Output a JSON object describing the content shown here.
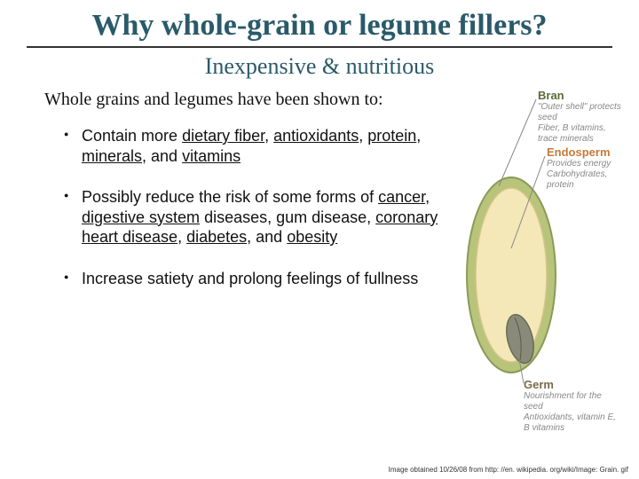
{
  "title": "Why whole-grain or legume fillers?",
  "subtitle": "Inexpensive & nutritious",
  "intro": "Whole grains and legumes have been shown to:",
  "bullets": [
    {
      "segments": [
        {
          "t": "Contain more "
        },
        {
          "t": "dietary fiber",
          "u": true
        },
        {
          "t": ", "
        },
        {
          "t": "antioxidants",
          "u": true
        },
        {
          "t": ", "
        },
        {
          "t": "protein",
          "u": true
        },
        {
          "t": ", "
        },
        {
          "t": "minerals",
          "u": true
        },
        {
          "t": ", and "
        },
        {
          "t": "vitamins",
          "u": true
        }
      ]
    },
    {
      "segments": [
        {
          "t": "Possibly reduce the risk of some forms of "
        },
        {
          "t": "cancer",
          "u": true
        },
        {
          "t": ", "
        },
        {
          "t": "digestive system",
          "u": true
        },
        {
          "t": " diseases, gum disease, "
        },
        {
          "t": "coronary heart disease",
          "u": true
        },
        {
          "t": ", "
        },
        {
          "t": "diabetes",
          "u": true
        },
        {
          "t": ", and "
        },
        {
          "t": "obesity",
          "u": true
        }
      ]
    },
    {
      "segments": [
        {
          "t": "Increase satiety and prolong feelings of fullness"
        }
      ]
    }
  ],
  "diagram": {
    "bran": {
      "title": "Bran",
      "sub1": "\"Outer shell\" protects seed",
      "sub2": "Fiber, B vitamins, trace minerals",
      "color": "#5a6b3a"
    },
    "endosperm": {
      "title": "Endosperm",
      "sub1": "Provides energy",
      "sub2": "Carbohydrates, protein",
      "color": "#c97a3a"
    },
    "germ": {
      "title": "Germ",
      "sub1": "Nourishment for the seed",
      "sub2": "Antioxidants, vitamin E, B vitamins",
      "color": "#7a6a4a"
    },
    "colors": {
      "bran_fill": "#b8c47a",
      "bran_stroke": "#8a9a5a",
      "endo_fill": "#f4e8b8",
      "endo_stroke": "#d4c48a",
      "germ_fill": "#8a8a7a",
      "germ_stroke": "#6a6a5a",
      "leader": "#888"
    }
  },
  "credit": "Image obtained 10/26/08 from http: //en. wikipedia. org/wiki/Image: Grain. gif"
}
